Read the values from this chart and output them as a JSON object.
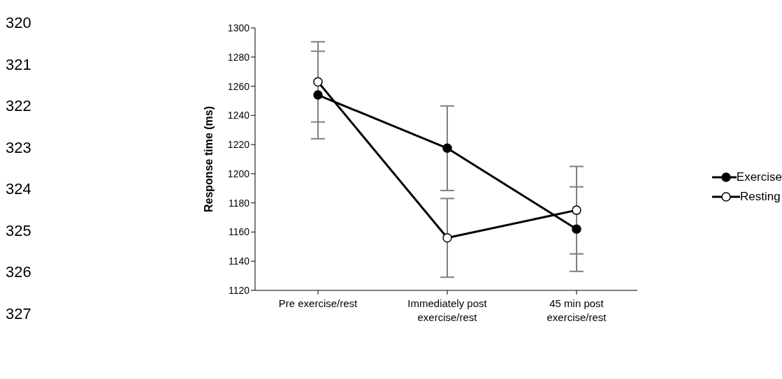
{
  "chart_data": {
    "type": "line",
    "ylabel": "Response time (ms)",
    "categories": [
      "Pre exercise/rest",
      "Immediately post exercise/rest",
      "45 min post exercise/rest"
    ],
    "series": [
      {
        "name": "Exercise",
        "color": "#000000",
        "values": [
          1254,
          1217.5,
          1162
        ],
        "errors": [
          30,
          29,
          29
        ]
      },
      {
        "name": "Resting",
        "color": "#000000",
        "values": [
          1263,
          1156,
          1175
        ],
        "errors": [
          27.5,
          27,
          30
        ]
      }
    ],
    "ylim": [
      1120,
      1300
    ],
    "yticks": [
      1120,
      1140,
      1160,
      1180,
      1200,
      1220,
      1240,
      1260,
      1280,
      1300
    ],
    "grid": false,
    "legend": "right",
    "marker": "circle",
    "line_style": "solid",
    "annotations": [
      "320",
      "321",
      "322",
      "323",
      "324",
      "325",
      "326",
      "327"
    ]
  }
}
